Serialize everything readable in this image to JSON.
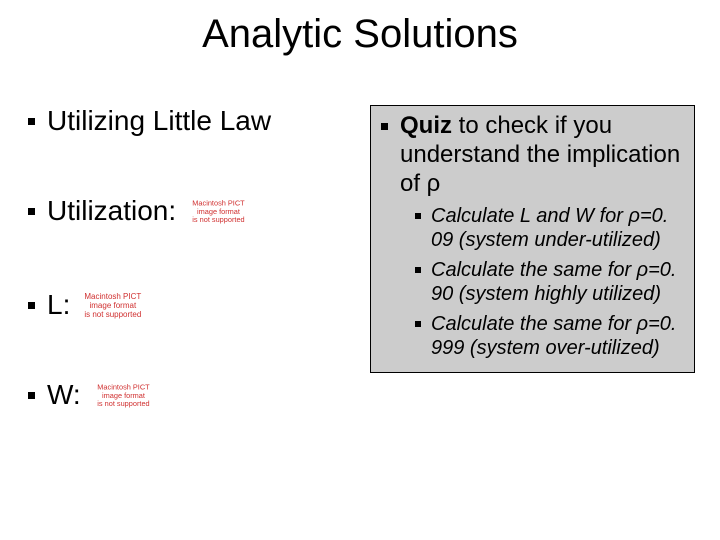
{
  "title": "Analytic Solutions",
  "left": {
    "little_law": "Utilizing Little Law",
    "utilization": "Utilization:",
    "l": "L:",
    "w": "W:"
  },
  "placeholder": {
    "line1": "Macintosh PICT",
    "line2": "image format",
    "line3": "is not supported"
  },
  "right": {
    "quiz_bold": "Quiz",
    "quiz_rest": " to check if you understand the implication of ρ",
    "b1": "Calculate L and W for ρ=0. 09 (system under-utilized)",
    "b2": "Calculate the same for ρ=0. 90 (system highly utilized)",
    "b3": "Calculate the same for ρ=0. 999 (system over-utilized)"
  },
  "colors": {
    "background": "#ffffff",
    "right_panel_bg": "#cccccc",
    "text": "#000000",
    "placeholder_text": "#d03030"
  },
  "typography": {
    "title_fontsize": 40,
    "left_fontsize": 28,
    "right_l1_fontsize": 24,
    "right_l2_fontsize": 20,
    "font_family": "Arial"
  }
}
